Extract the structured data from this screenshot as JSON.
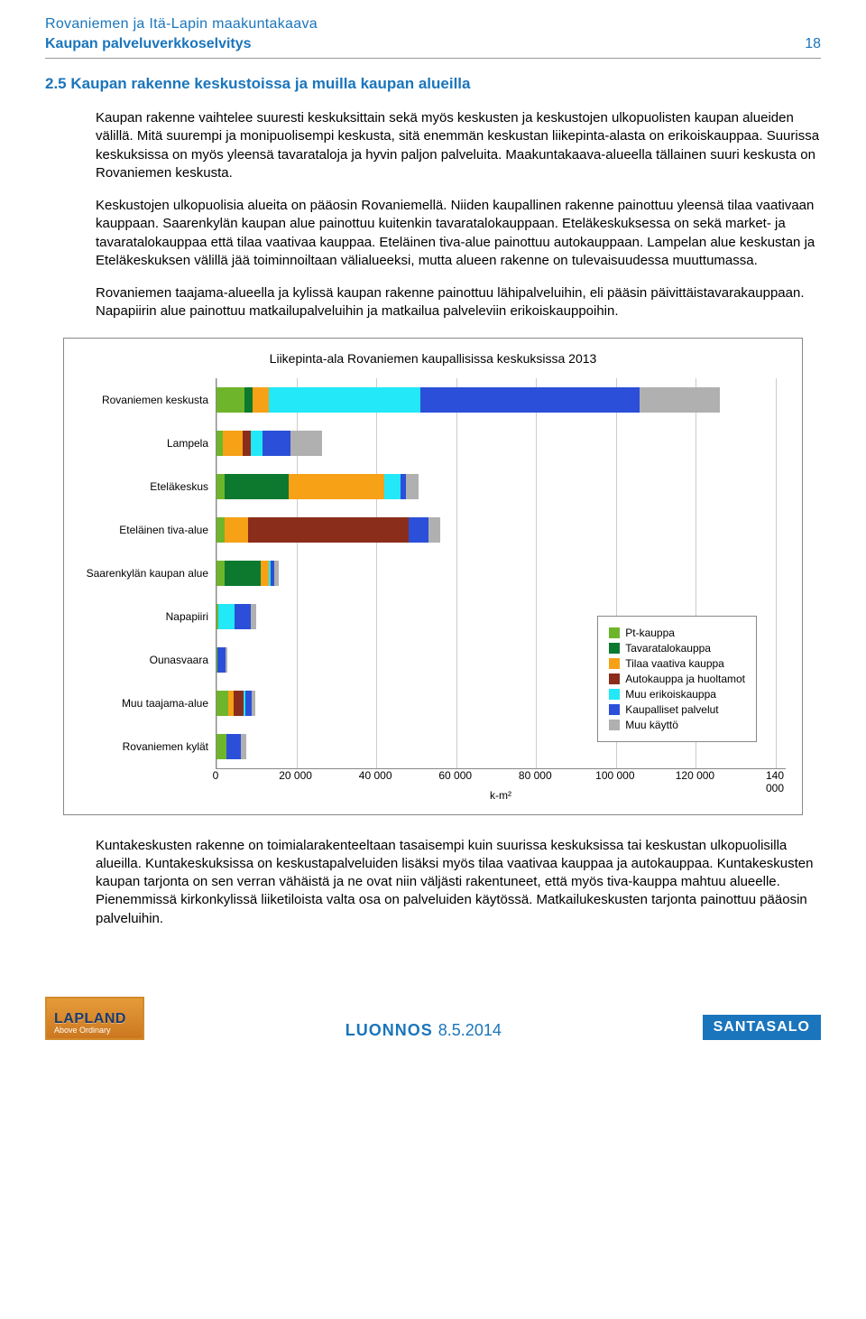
{
  "header": {
    "line1": "Rovaniemen ja Itä-Lapin maakuntakaava",
    "line2": "Kaupan palveluverkkoselvitys",
    "pagenum": "18"
  },
  "section_title": "2.5   Kaupan rakenne keskustoissa ja muilla kaupan alueilla",
  "paragraphs": [
    "Kaupan rakenne vaihtelee suuresti keskuksittain sekä myös keskusten ja keskustojen ulkopuolisten kaupan alueiden välillä. Mitä suurempi ja monipuolisempi keskusta, sitä enemmän keskustan liikepinta-alasta on erikoiskauppaa. Suurissa keskuksissa on myös yleensä tavarataloja ja hyvin paljon palveluita. Maakuntakaava-alueella tällainen suuri keskusta on Rovaniemen keskusta.",
    "Keskustojen ulkopuolisia alueita on pääosin Rovaniemellä. Niiden kaupallinen rakenne painottuu yleensä tilaa vaativaan kauppaan. Saarenkylän kaupan alue painottuu kuitenkin tavaratalokauppaan. Eteläkeskuksessa on sekä market- ja tavaratalokauppaa että tilaa vaativaa kauppaa. Eteläinen tiva-alue painottuu autokauppaan. Lampelan alue keskustan ja Eteläkeskuksen välillä jää toiminnoiltaan välialueeksi, mutta alueen rakenne on tulevaisuudessa muuttumassa.",
    "Rovaniemen taajama-alueella ja kylissä kaupan rakenne painottuu lähipalveluihin, eli pääsin päivittäistavarakauppaan. Napapiirin alue painottuu matkailupalveluihin ja matkailua palveleviin erikoiskauppoihin."
  ],
  "chart": {
    "title": "Liikepinta-ala Rovaniemen kaupallisissa keskuksissa 2013",
    "xmax": 140000,
    "xticks": [
      0,
      20000,
      40000,
      60000,
      80000,
      100000,
      120000,
      140000
    ],
    "xticklabels": [
      "0",
      "20 000",
      "40 000",
      "60 000",
      "80 000",
      "100 000",
      "120 000",
      "140 000"
    ],
    "axis_label": "k-m²",
    "colors": {
      "pt": "#6fb52c",
      "tav": "#0d792f",
      "tiva": "#f7a116",
      "auto": "#8b2d1b",
      "erik": "#22e8f7",
      "palv": "#2b4fd8",
      "muu": "#b0b0b0"
    },
    "categories": [
      "Rovaniemen keskusta",
      "Lampela",
      "Eteläkeskus",
      "Eteläinen tiva-alue",
      "Saarenkylän kaupan alue",
      "Napapiiri",
      "Ounasvaara",
      "Muu taajama-alue",
      "Rovaniemen kylät"
    ],
    "series": [
      {
        "pt": 7000,
        "tav": 2000,
        "tiva": 4000,
        "auto": 0,
        "erik": 38000,
        "palv": 55000,
        "muu": 20000
      },
      {
        "pt": 1500,
        "tav": 0,
        "tiva": 5000,
        "auto": 2000,
        "erik": 3000,
        "palv": 7000,
        "muu": 8000
      },
      {
        "pt": 2000,
        "tav": 16000,
        "tiva": 24000,
        "auto": 0,
        "erik": 4000,
        "palv": 1500,
        "muu": 3000
      },
      {
        "pt": 2000,
        "tav": 0,
        "tiva": 6000,
        "auto": 40000,
        "erik": 0,
        "palv": 5000,
        "muu": 3000
      },
      {
        "pt": 2000,
        "tav": 9000,
        "tiva": 2000,
        "auto": 0,
        "erik": 500,
        "palv": 1000,
        "muu": 1000
      },
      {
        "pt": 500,
        "tav": 0,
        "tiva": 0,
        "auto": 0,
        "erik": 4000,
        "palv": 4000,
        "muu": 1500
      },
      {
        "pt": 300,
        "tav": 0,
        "tiva": 0,
        "auto": 0,
        "erik": 0,
        "palv": 2000,
        "muu": 500
      },
      {
        "pt": 3000,
        "tav": 0,
        "tiva": 1200,
        "auto": 2500,
        "erik": 500,
        "palv": 1500,
        "muu": 1000
      },
      {
        "pt": 2500,
        "tav": 0,
        "tiva": 0,
        "auto": 0,
        "erik": 0,
        "palv": 3500,
        "muu": 1500
      }
    ],
    "legend": [
      {
        "key": "pt",
        "label": "Pt-kauppa"
      },
      {
        "key": "tav",
        "label": "Tavaratalokauppa"
      },
      {
        "key": "tiva",
        "label": "Tilaa vaativa kauppa"
      },
      {
        "key": "auto",
        "label": "Autokauppa ja huoltamot"
      },
      {
        "key": "erik",
        "label": "Muu erikoiskauppa"
      },
      {
        "key": "palv",
        "label": "Kaupalliset palvelut"
      },
      {
        "key": "muu",
        "label": "Muu käyttö"
      }
    ]
  },
  "bottom_para": "Kuntakeskusten rakenne on toimialarakenteeltaan tasaisempi kuin suurissa keskuksissa tai keskustan ulkopuolisilla alueilla. Kuntakeskuksissa on keskustapalveluiden lisäksi myös tilaa vaativaa kauppaa ja autokauppaa. Kuntakeskusten kaupan tarjonta on sen verran vähäistä ja ne ovat niin väljästi rakentuneet, että myös tiva-kauppa mahtuu alueelle. Pienemmissä kirkonkylissä liiketiloista valta osa on palveluiden käytössä. Matkailukeskusten tarjonta painottuu pääosin palveluihin.",
  "footer": {
    "lapland_big": "LAPLAND",
    "lapland_small": "Above Ordinary",
    "center": "LUONNOS",
    "date": "8.5.2014",
    "brand": "SANTASALO"
  }
}
